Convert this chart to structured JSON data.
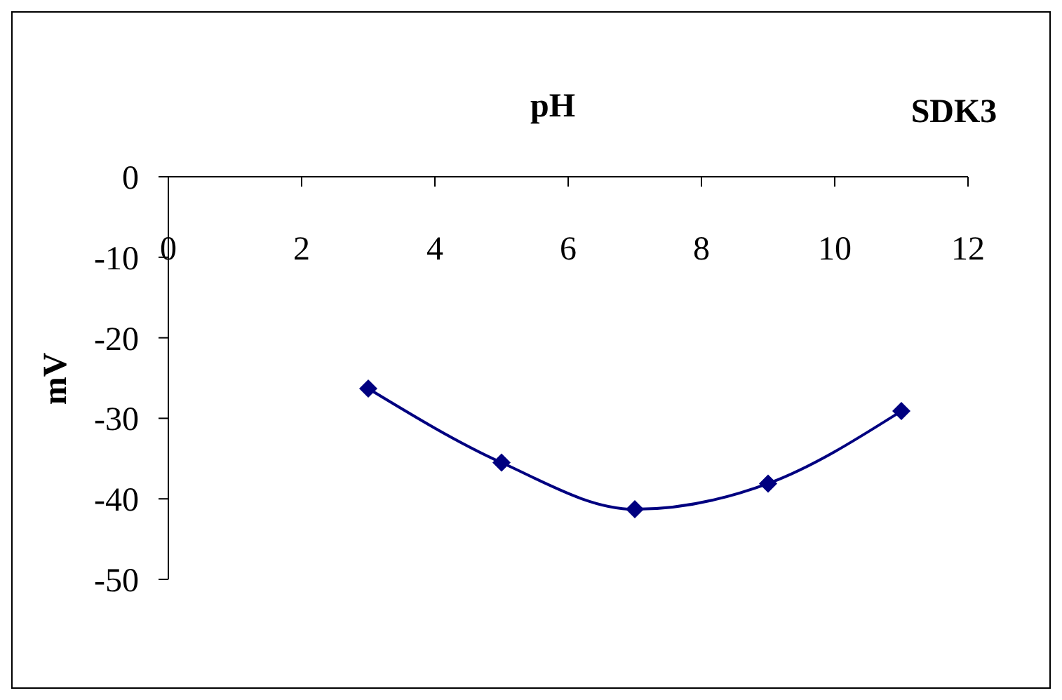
{
  "chart_data": {
    "type": "line",
    "title": "SDK3",
    "xlabel": "pH",
    "ylabel": "mV",
    "x": [
      3,
      5,
      7,
      9,
      11
    ],
    "series": [
      {
        "color": "#000080",
        "values": [
          -26.3,
          -35.5,
          -41.3,
          -38.1,
          -29.1
        ]
      }
    ],
    "xlim": [
      0,
      12
    ],
    "xticks": [
      0,
      2,
      4,
      6,
      8,
      10,
      12
    ],
    "ylim": [
      -50,
      0
    ],
    "yticks": [
      -50,
      -40,
      -30,
      -20,
      -10,
      0
    ],
    "marker": "diamond",
    "line_style": "solid"
  }
}
